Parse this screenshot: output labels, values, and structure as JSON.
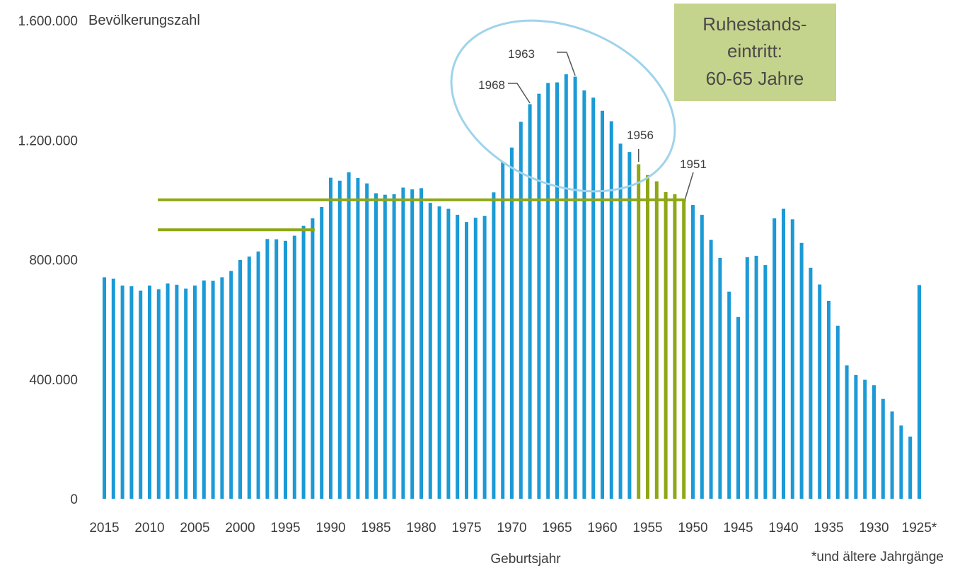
{
  "chart_data": {
    "type": "bar",
    "ylabel": "Bevölkerungszahl",
    "xlabel": "Geburtsjahr",
    "footnote": "*und ältere Jahrgänge",
    "ylim": [
      0,
      1600000
    ],
    "y_ticks": [
      0,
      400000,
      800000,
      1200000,
      1600000
    ],
    "y_tick_labels": [
      "0",
      "400.000",
      "800.000",
      "1.200.000",
      "1.600.000"
    ],
    "x_tick_labels": [
      "2015",
      "2010",
      "2005",
      "2000",
      "1995",
      "1990",
      "1985",
      "1980",
      "1975",
      "1970",
      "1965",
      "1960",
      "1955",
      "1950",
      "1945",
      "1940",
      "1935",
      "1930",
      "1925*"
    ],
    "grid": false,
    "colors": {
      "default": "#1b9ad6",
      "retirement": "#8ea716",
      "ellipse": "#9fd3ea",
      "box": "#c5d48c"
    },
    "categories": [
      "2015",
      "2014",
      "2013",
      "2012",
      "2011",
      "2010",
      "2009",
      "2008",
      "2007",
      "2006",
      "2005",
      "2004",
      "2003",
      "2002",
      "2001",
      "2000",
      "1999",
      "1998",
      "1997",
      "1996",
      "1995",
      "1994",
      "1993",
      "1992",
      "1991",
      "1990",
      "1989",
      "1988",
      "1987",
      "1986",
      "1985",
      "1984",
      "1983",
      "1982",
      "1981",
      "1980",
      "1979",
      "1978",
      "1977",
      "1976",
      "1975",
      "1974",
      "1973",
      "1972",
      "1971",
      "1970",
      "1969",
      "1968",
      "1967",
      "1966",
      "1965",
      "1964",
      "1963",
      "1962",
      "1961",
      "1960",
      "1959",
      "1958",
      "1957",
      "1956",
      "1955",
      "1954",
      "1953",
      "1952",
      "1951",
      "1950",
      "1949",
      "1948",
      "1947",
      "1946",
      "1945",
      "1944",
      "1943",
      "1942",
      "1941",
      "1940",
      "1939",
      "1938",
      "1937",
      "1936",
      "1935",
      "1934",
      "1933",
      "1932",
      "1931",
      "1930",
      "1929",
      "1928",
      "1927",
      "1926",
      "1925*"
    ],
    "values": [
      741000,
      736000,
      713000,
      711000,
      696000,
      713000,
      701000,
      720000,
      716000,
      703000,
      713000,
      730000,
      729000,
      741000,
      762000,
      799000,
      810000,
      827000,
      869000,
      868000,
      863000,
      880000,
      913000,
      938000,
      976000,
      1074000,
      1064000,
      1092000,
      1073000,
      1055000,
      1022000,
      1017000,
      1019000,
      1041000,
      1035000,
      1039000,
      990000,
      978000,
      970000,
      950000,
      926000,
      940000,
      946000,
      1025000,
      1127000,
      1175000,
      1261000,
      1320000,
      1355000,
      1391000,
      1393000,
      1420000,
      1412000,
      1366000,
      1342000,
      1298000,
      1263000,
      1188000,
      1160000,
      1119000,
      1083000,
      1062000,
      1026000,
      1019000,
      1001000,
      983000,
      950000,
      866000,
      806000,
      693000,
      608000,
      808000,
      813000,
      782000,
      938000,
      970000,
      935000,
      856000,
      773000,
      717000,
      662000,
      579000,
      446000,
      414000,
      398000,
      380000,
      334000,
      292000,
      245000,
      208000,
      715000
    ],
    "highlight": {
      "series": "Ruhestandseintritt",
      "from": "1956",
      "to": "1951"
    },
    "reference_levels": [
      {
        "value": 1000000,
        "from": "2008",
        "to": "1951"
      },
      {
        "value": 900000,
        "from": "2008",
        "to": "1992"
      }
    ],
    "annotations": [
      {
        "label": "1963",
        "category": "1963"
      },
      {
        "label": "1968",
        "category": "1968"
      },
      {
        "label": "1956",
        "category": "1956"
      },
      {
        "label": "1951",
        "category": "1951"
      }
    ],
    "callout_box": {
      "lines": [
        "Ruhestands-",
        "eintritt:",
        "60-65 Jahre"
      ]
    }
  }
}
